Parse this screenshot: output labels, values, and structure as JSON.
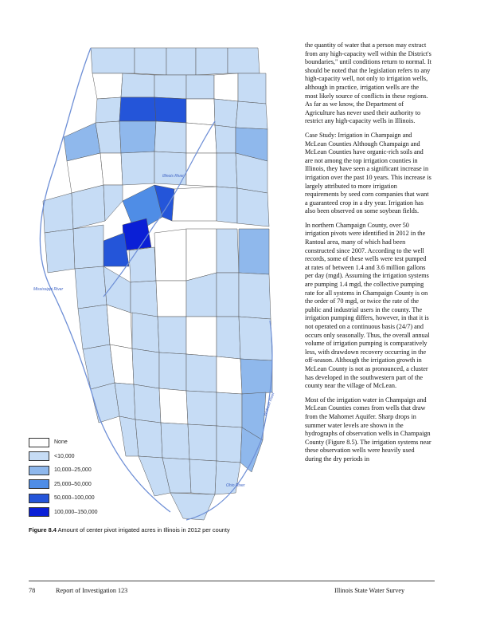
{
  "body_text": {
    "p1": "the quantity of water that a person may extract from any high-capacity well within the District's boundaries,\" until conditions return to normal. It should be noted that the legislation refers to any high-capacity well, not only to irrigation wells, although in practice, irrigation wells are the most likely source of conflicts in these regions. As far as we know, the Department of Agriculture has never used their authority to restrict any high-capacity wells in Illinois.",
    "p2": "Case Study: Irrigation in Champaign and McLean Counties Although Champaign and McLean Counties have organic-rich soils and are not among the top irrigation counties in Illinois, they have seen a significant increase in irrigation over the past 10 years. This increase is largely attributed to more irrigation requirements by seed corn companies that want a guaranteed crop in a dry year. Irrigation has also been observed on some soybean fields.",
    "p3": "In northern Champaign County, over 50 irrigation pivots were identified in 2012 in the Rantoul area, many of which had been constructed since 2007. According to the well records, some of these wells were test pumped at rates of between 1.4 and 3.6 million gallons per day (mgd). Assuming the irrigation systems are pumping 1.4 mgd, the collective pumping rate for all systems in Champaign County is on the order of 70 mgd, or twice the rate of the public and industrial users in the county. The irrigation pumping differs, however, in that it is not operated on a continuous basis (24/7) and occurs only seasonally. Thus, the overall annual volume of irrigation pumping is comparatively less, with drawdown recovery occurring in the off-season. Although the irrigation growth in McLean County is not as pronounced, a cluster has developed in the southwestern part of the county near the village of McLean.",
    "p4": "Most of the irrigation water in Champaign and McLean Counties comes from wells that draw from the Mahomet Aquifer. Sharp drops in summer water levels are shown in the hydrographs of observation wells in Champaign County (Figure 8.5). The irrigation systems near these observation wells were heavily used during the dry periods in"
  },
  "legend": [
    {
      "label": "None",
      "color": "#ffffff"
    },
    {
      "label": "<10,000",
      "color": "#c6dcf5"
    },
    {
      "label": "10,000–25,000",
      "color": "#8fb8ec"
    },
    {
      "label": "25,000–50,000",
      "color": "#4f8de6"
    },
    {
      "label": "50,000–100,000",
      "color": "#2455d9"
    },
    {
      "label": "100,000–150,000",
      "color": "#0a1fd6"
    }
  ],
  "figure_caption": {
    "label": "Figure 8.4",
    "text": "Amount of center pivot irrigated acres in Illinois in 2012 per county"
  },
  "footer": {
    "page_number": "78",
    "report": "Report of Investigation 123",
    "publisher": "Illinois State Water Survey"
  },
  "map_labels": {
    "mississippi": "Mississippi River",
    "illinois": "Illinois River",
    "wabash": "Wabash River",
    "ohio": "Ohio River"
  }
}
